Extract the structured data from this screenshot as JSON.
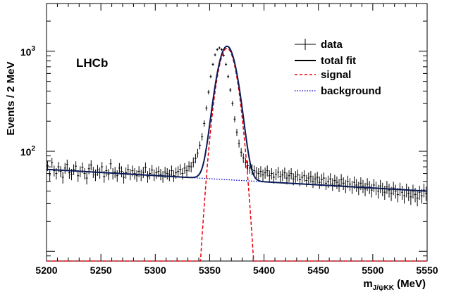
{
  "chart_data": {
    "type": "line",
    "scale": "log-y",
    "experiment_label": "LHCb",
    "xlabel": "m",
    "xlabel_subscript": "J/ψKK",
    "xlabel_unit": "(MeV)",
    "ylabel": "Events / 2 MeV",
    "xlim": [
      5200,
      5550
    ],
    "ylim": [
      8,
      3000
    ],
    "x_ticks": [
      5200,
      5250,
      5300,
      5350,
      5400,
      5450,
      5500,
      5550
    ],
    "y_tick_labels": [
      {
        "value": 100,
        "base": "10",
        "exp": "2"
      },
      {
        "value": 1000,
        "base": "10",
        "exp": "3"
      }
    ],
    "legend_position": "top-right",
    "legend": [
      {
        "label": "data",
        "style": "errorbar",
        "color": "#000000"
      },
      {
        "label": "total fit",
        "style": "solid",
        "color": "#000000"
      },
      {
        "label": "signal",
        "style": "dashed",
        "color": "#e8000b"
      },
      {
        "label": "background",
        "style": "dotted",
        "color": "#0000cc"
      }
    ],
    "signal_peak": {
      "mean": 5366,
      "sigma": 7.8,
      "height": 1070
    },
    "background_curve": {
      "x": [
        5200,
        5550
      ],
      "y": [
        66,
        40
      ]
    },
    "data_points": {
      "x": [
        5201,
        5203,
        5205,
        5207,
        5209,
        5211,
        5213,
        5215,
        5217,
        5219,
        5221,
        5223,
        5225,
        5227,
        5229,
        5231,
        5233,
        5235,
        5237,
        5239,
        5241,
        5243,
        5245,
        5247,
        5249,
        5251,
        5253,
        5255,
        5257,
        5259,
        5261,
        5263,
        5265,
        5267,
        5269,
        5271,
        5273,
        5275,
        5277,
        5279,
        5281,
        5283,
        5285,
        5287,
        5289,
        5291,
        5293,
        5295,
        5297,
        5299,
        5301,
        5303,
        5305,
        5307,
        5309,
        5311,
        5313,
        5315,
        5317,
        5319,
        5321,
        5323,
        5325,
        5327,
        5329,
        5331,
        5333,
        5335,
        5337,
        5339,
        5341,
        5343,
        5345,
        5347,
        5349,
        5351,
        5353,
        5355,
        5357,
        5359,
        5361,
        5363,
        5365,
        5367,
        5369,
        5371,
        5373,
        5375,
        5377,
        5379,
        5381,
        5383,
        5385,
        5387,
        5389,
        5391,
        5393,
        5395,
        5397,
        5399,
        5401,
        5403,
        5405,
        5407,
        5409,
        5411,
        5413,
        5415,
        5417,
        5419,
        5421,
        5423,
        5425,
        5427,
        5429,
        5431,
        5433,
        5435,
        5437,
        5439,
        5441,
        5443,
        5445,
        5447,
        5449,
        5451,
        5453,
        5455,
        5457,
        5459,
        5461,
        5463,
        5465,
        5467,
        5469,
        5471,
        5473,
        5475,
        5477,
        5479,
        5481,
        5483,
        5485,
        5487,
        5489,
        5491,
        5493,
        5495,
        5497,
        5499,
        5501,
        5503,
        5505,
        5507,
        5509,
        5511,
        5513,
        5515,
        5517,
        5519,
        5521,
        5523,
        5525,
        5527,
        5529,
        5531,
        5533,
        5535,
        5537,
        5539,
        5541,
        5543,
        5545,
        5547,
        5549
      ],
      "y": [
        72,
        58,
        77,
        64,
        60,
        70,
        63,
        55,
        68,
        74,
        61,
        59,
        66,
        71,
        57,
        63,
        69,
        60,
        54,
        67,
        73,
        62,
        58,
        65,
        61,
        70,
        56,
        64,
        59,
        75,
        60,
        62,
        57,
        68,
        63,
        55,
        61,
        66,
        59,
        64,
        60,
        57,
        63,
        58,
        62,
        69,
        56,
        60,
        65,
        58,
        61,
        63,
        59,
        56,
        62,
        60,
        58,
        64,
        57,
        61,
        63,
        66,
        60,
        68,
        64,
        71,
        70,
        78,
        85,
        96,
        115,
        140,
        190,
        270,
        390,
        560,
        740,
        920,
        1040,
        1080,
        1040,
        910,
        740,
        560,
        410,
        300,
        210,
        155,
        120,
        98,
        86,
        77,
        72,
        68,
        66,
        64,
        62,
        60,
        63,
        58,
        61,
        64,
        57,
        60,
        55,
        59,
        62,
        56,
        58,
        61,
        54,
        57,
        60,
        53,
        56,
        58,
        52,
        55,
        57,
        51,
        54,
        56,
        50,
        53,
        55,
        49,
        52,
        54,
        48,
        50,
        53,
        47,
        51,
        49,
        46,
        52,
        48,
        45,
        50,
        47,
        44,
        49,
        46,
        43,
        48,
        45,
        42,
        47,
        44,
        41,
        46,
        43,
        40,
        45,
        42,
        39,
        44,
        41,
        38,
        43,
        40,
        37,
        42,
        39,
        36,
        41,
        38,
        35,
        40,
        37,
        34,
        39,
        36,
        41,
        38
      ]
    }
  }
}
